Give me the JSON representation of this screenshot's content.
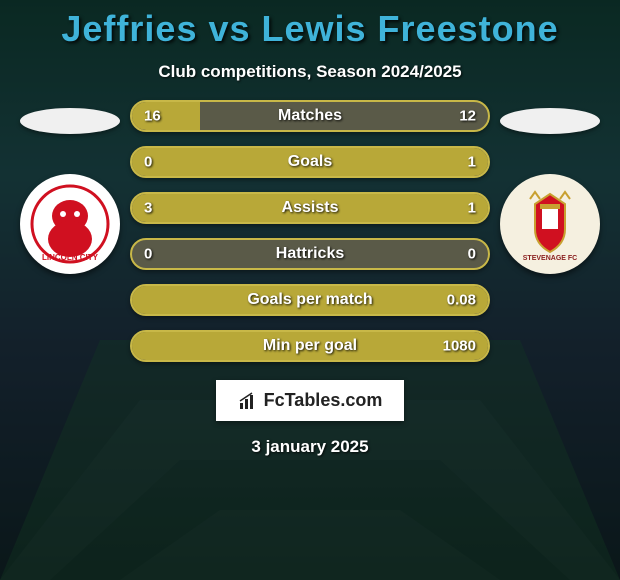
{
  "background": {
    "color_top": "#0a4a2b",
    "color_top_mid": "#1a5a4a",
    "color_mid": "#2a3a4a",
    "color_bot": "#1a1a2a",
    "grass_stripe_light": "#2a6a3a",
    "grass_stripe_dark": "#1a5a2a"
  },
  "title": {
    "text": "Jeffries vs Lewis Freestone",
    "color": "#3fb3d9",
    "fontsize": 36
  },
  "subtitle": {
    "text": "Club competitions, Season 2024/2025",
    "color": "#ffffff",
    "fontsize": 17
  },
  "player_left": {
    "flag_color": "#f0f0f0",
    "club_bg": "#ffffff",
    "club_accent": "#d01020",
    "club_name": "Lincoln"
  },
  "player_right": {
    "flag_color": "#f0f0f0",
    "club_bg": "#f5f0e0",
    "club_accent": "#c8a030",
    "club_name": "Stevenage"
  },
  "stats": [
    {
      "label": "Matches",
      "left_val": "16",
      "right_val": "12",
      "left_pct": 19,
      "right_pct": 0,
      "bar_base": "#5a5a48",
      "fill_color": "#b8a838",
      "border_color": "#c8b848"
    },
    {
      "label": "Goals",
      "left_val": "0",
      "right_val": "1",
      "left_pct": 0,
      "right_pct": 100,
      "bar_base": "#5a5a48",
      "fill_color": "#b8a838",
      "border_color": "#c8b848"
    },
    {
      "label": "Assists",
      "left_val": "3",
      "right_val": "1",
      "left_pct": 100,
      "right_pct": 0,
      "bar_base": "#5a5a48",
      "fill_color": "#b8a838",
      "border_color": "#c8b848"
    },
    {
      "label": "Hattricks",
      "left_val": "0",
      "right_val": "0",
      "left_pct": 0,
      "right_pct": 0,
      "bar_base": "#5a5a48",
      "fill_color": "#b8a838",
      "border_color": "#c8b848"
    },
    {
      "label": "Goals per match",
      "left_val": "",
      "right_val": "0.08",
      "left_pct": 0,
      "right_pct": 100,
      "bar_base": "#5a5a48",
      "fill_color": "#b8a838",
      "border_color": "#c8b848"
    },
    {
      "label": "Min per goal",
      "left_val": "",
      "right_val": "1080",
      "left_pct": 0,
      "right_pct": 100,
      "bar_base": "#5a5a48",
      "fill_color": "#b8a838",
      "border_color": "#c8b848"
    }
  ],
  "brand": {
    "text": "FcTables.com",
    "bg": "#ffffff",
    "text_color": "#222222"
  },
  "date": {
    "text": "3 january 2025",
    "color": "#ffffff"
  }
}
